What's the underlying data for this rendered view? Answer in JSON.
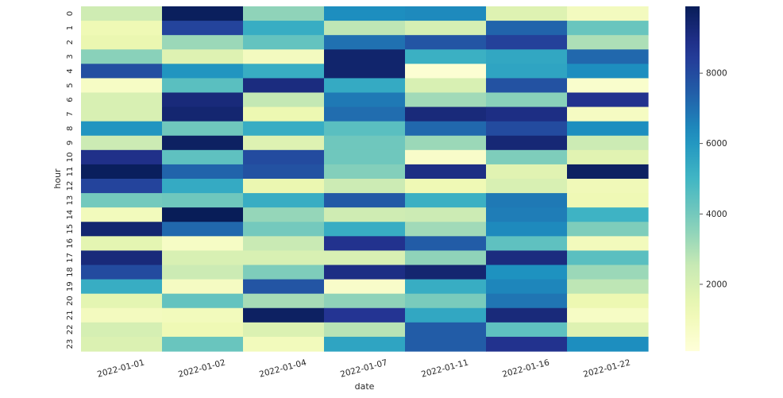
{
  "chart_data": {
    "type": "heatmap",
    "title": "",
    "xlabel": "date",
    "ylabel": "hour",
    "colormap": "YlGnBu",
    "vmin": 100,
    "vmax": 9900,
    "x": [
      "2022-01-01",
      "2022-01-02",
      "2022-01-04",
      "2022-01-07",
      "2022-01-11",
      "2022-01-16",
      "2022-01-22"
    ],
    "y": [
      "0",
      "1",
      "2",
      "3",
      "4",
      "5",
      "6",
      "7",
      "8",
      "9",
      "10",
      "11",
      "12",
      "13",
      "14",
      "15",
      "16",
      "17",
      "18",
      "19",
      "20",
      "21",
      "22",
      "23"
    ],
    "values": [
      [
        2300,
        9800,
        3500,
        6300,
        6400,
        1800,
        900
      ],
      [
        1200,
        8200,
        5300,
        2700,
        2100,
        7300,
        4200
      ],
      [
        1400,
        3300,
        4300,
        7000,
        7700,
        8300,
        3000
      ],
      [
        3600,
        1800,
        900,
        9500,
        5200,
        5500,
        7200
      ],
      [
        7900,
        6100,
        5300,
        9500,
        300,
        5600,
        6300
      ],
      [
        700,
        4500,
        9100,
        5400,
        2000,
        7800,
        500
      ],
      [
        2000,
        9200,
        2600,
        6800,
        3200,
        3600,
        8800
      ],
      [
        2000,
        9400,
        1300,
        7100,
        9200,
        9000,
        800
      ],
      [
        6100,
        4100,
        5300,
        4500,
        7200,
        8000,
        6300
      ],
      [
        2400,
        9700,
        1800,
        4100,
        3300,
        9300,
        2400
      ],
      [
        8900,
        4400,
        8000,
        4100,
        600,
        3800,
        1700
      ],
      [
        9800,
        7300,
        7800,
        3700,
        9000,
        1700,
        9700
      ],
      [
        8200,
        5400,
        1400,
        2400,
        1200,
        2000,
        1100
      ],
      [
        4000,
        4100,
        5300,
        7600,
        5200,
        6800,
        1200
      ],
      [
        1000,
        9900,
        3400,
        2300,
        2400,
        6700,
        5100
      ],
      [
        9400,
        7200,
        4000,
        5300,
        3200,
        6400,
        3800
      ],
      [
        1600,
        700,
        2500,
        8800,
        7500,
        4400,
        1000
      ],
      [
        9200,
        2000,
        2000,
        2000,
        3500,
        9100,
        4500
      ],
      [
        8000,
        2400,
        3800,
        9000,
        9400,
        6200,
        3300
      ],
      [
        5300,
        800,
        7700,
        600,
        5300,
        6500,
        2700
      ],
      [
        1600,
        4300,
        3100,
        3500,
        3900,
        6900,
        1300
      ],
      [
        900,
        1000,
        9700,
        8700,
        5500,
        9200,
        700
      ],
      [
        2100,
        1200,
        1900,
        2800,
        7500,
        4400,
        1800
      ],
      [
        1900,
        4200,
        1000,
        5600,
        7500,
        8800,
        6300
      ]
    ],
    "colorbar_ticks": [
      2000,
      4000,
      6000,
      8000
    ]
  }
}
